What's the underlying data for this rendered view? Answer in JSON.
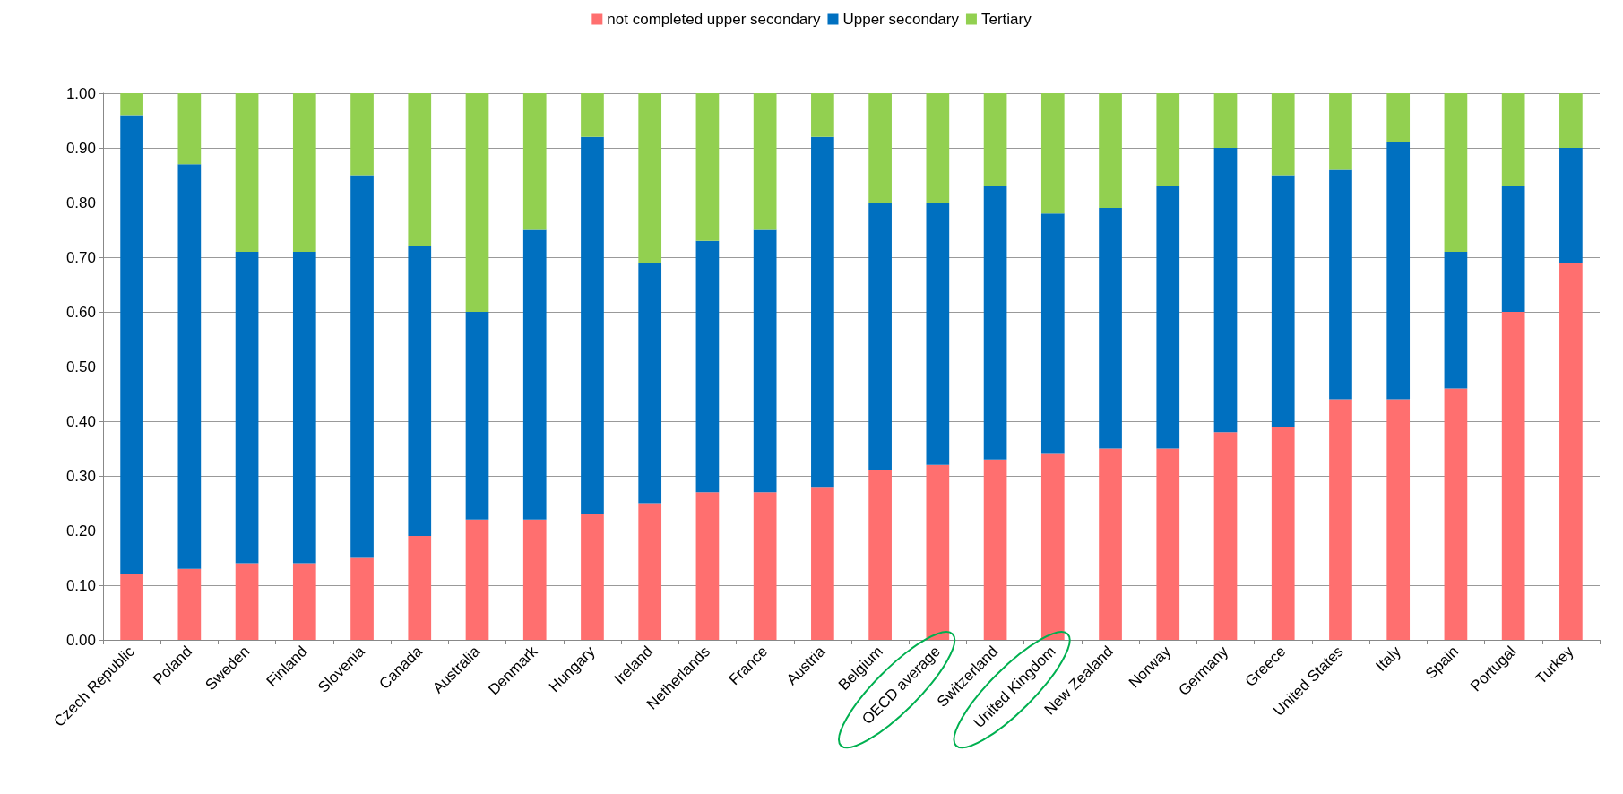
{
  "chart_data": {
    "type": "bar",
    "stacked": true,
    "categories": [
      "Czech Republic",
      "Poland",
      "Sweden",
      "Finland",
      "Slovenia",
      "Canada",
      "Australia",
      "Denmark",
      "Hungary",
      "Ireland",
      "Netherlands",
      "France",
      "Austria",
      "Belgium",
      "OECD average",
      "Switzerland",
      "United Kingdom",
      "New Zealand",
      "Norway",
      "Germany",
      "Greece",
      "United States",
      "Italy",
      "Spain",
      "Portugal",
      "Turkey"
    ],
    "series": [
      {
        "name": "not completed upper secondary",
        "color": "#ff6f6f",
        "values": [
          0.12,
          0.13,
          0.14,
          0.14,
          0.15,
          0.19,
          0.22,
          0.22,
          0.23,
          0.25,
          0.27,
          0.27,
          0.28,
          0.31,
          0.32,
          0.33,
          0.34,
          0.35,
          0.35,
          0.38,
          0.39,
          0.44,
          0.44,
          0.46,
          0.6,
          0.69
        ]
      },
      {
        "name": "Upper secondary",
        "color": "#0070c0",
        "values": [
          0.84,
          0.74,
          0.57,
          0.57,
          0.7,
          0.53,
          0.38,
          0.53,
          0.69,
          0.44,
          0.46,
          0.48,
          0.64,
          0.49,
          0.48,
          0.5,
          0.44,
          0.44,
          0.48,
          0.52,
          0.46,
          0.42,
          0.47,
          0.25,
          0.23,
          0.21
        ]
      },
      {
        "name": "Tertiary",
        "color": "#92d050",
        "values": [
          0.04,
          0.13,
          0.29,
          0.29,
          0.15,
          0.28,
          0.4,
          0.25,
          0.08,
          0.31,
          0.27,
          0.25,
          0.08,
          0.2,
          0.2,
          0.17,
          0.22,
          0.21,
          0.17,
          0.1,
          0.15,
          0.14,
          0.09,
          0.29,
          0.17,
          0.1
        ]
      }
    ],
    "ylim": [
      0,
      1
    ],
    "yticks": [
      {
        "value": 0,
        "label": "0.00"
      },
      {
        "value": 0.1,
        "label": "0.10"
      },
      {
        "value": 0.2,
        "label": "0.20"
      },
      {
        "value": 0.3,
        "label": "0.30"
      },
      {
        "value": 0.4,
        "label": "0.40"
      },
      {
        "value": 0.5,
        "label": "0.50"
      },
      {
        "value": 0.6,
        "label": "0.60"
      },
      {
        "value": 0.7,
        "label": "0.70"
      },
      {
        "value": 0.8,
        "label": "0.80"
      },
      {
        "value": 0.9,
        "label": "0.90"
      },
      {
        "value": 1,
        "label": "1.00"
      }
    ],
    "grid": "y",
    "legend": "top"
  }
}
